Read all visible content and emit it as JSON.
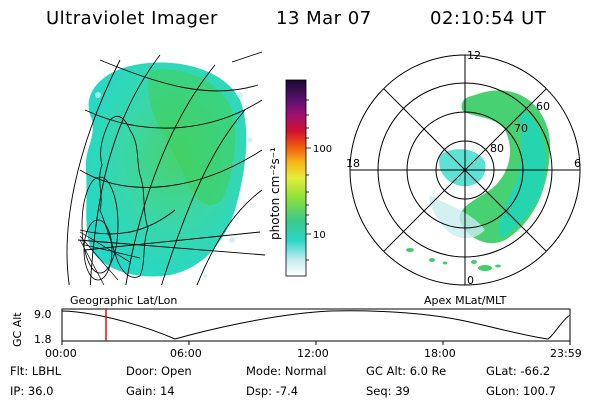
{
  "header": {
    "title": "Ultraviolet Imager",
    "date": "13 Mar 07",
    "time": "02:10:54 UT"
  },
  "colors": {
    "aurora_cyan": "#19d6c4",
    "aurora_green": "#3ecf6a",
    "marker_red": "#e01010"
  },
  "icons": {
    "geo_panel": "geographic-map-icon",
    "polar_panel": "polar-grid-icon"
  },
  "geo_panel": {
    "caption": "Geographic Lat/Lon"
  },
  "colorbar": {
    "unit_label": "photon cm⁻²s⁻¹",
    "ticks": [
      "100",
      "10"
    ]
  },
  "polar_panel": {
    "caption": "Apex MLat/MLT",
    "mlt_labels": {
      "top": "12",
      "left": "18",
      "right": "6",
      "bottom": "0"
    },
    "lat_labels": [
      "60",
      "70",
      "80"
    ]
  },
  "orbit_plot": {
    "ylabel": "GC Alt",
    "ymax": "9.0",
    "ymin": "1.8",
    "xticks": [
      "00:00",
      "06:00",
      "12:00",
      "18:00",
      "23:59"
    ],
    "marker_time": "02:10"
  },
  "status": {
    "row1": [
      {
        "label": "Flt:",
        "value": "LBHL"
      },
      {
        "label": "Door:",
        "value": "Open"
      },
      {
        "label": "Mode:",
        "value": "Normal"
      },
      {
        "label": "GC Alt:",
        "value": "6.0 Re"
      },
      {
        "label": "GLat:",
        "value": "-66.2"
      }
    ],
    "row2": [
      {
        "label": "IP:",
        "value": "36.0"
      },
      {
        "label": "Gain:",
        "value": "14"
      },
      {
        "label": "Dsp:",
        "value": "-7.4"
      },
      {
        "label": "Seq:",
        "value": "39"
      },
      {
        "label": "GLon:",
        "value": "100.7"
      }
    ]
  }
}
